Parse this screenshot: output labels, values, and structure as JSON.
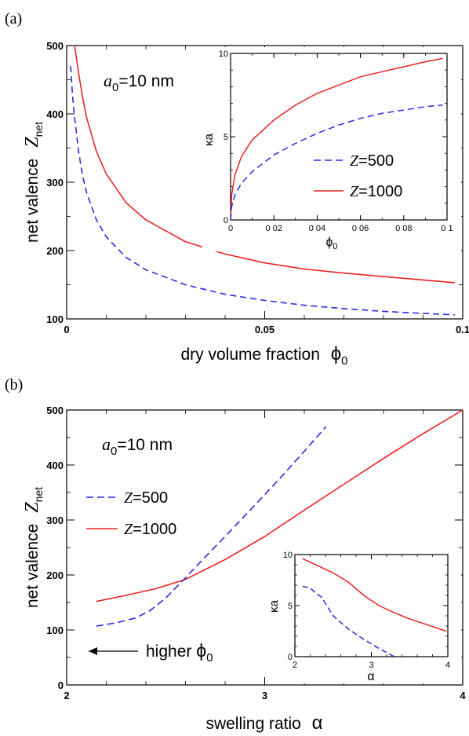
{
  "chart_data": [
    {
      "type": "line",
      "panel_label": "(a)",
      "xlabel": "dry volume fraction",
      "xlabel_symbol": "ϕ",
      "xlabel_sub": "0",
      "ylabel": "net valence",
      "ylabel_symbol": "Z",
      "ylabel_sub": "net",
      "xlim": [
        0,
        0.1
      ],
      "ylim": [
        100,
        500
      ],
      "xticks": [
        "0",
        "0.05",
        "0.1"
      ],
      "yticks": [
        "100",
        "200",
        "300",
        "400",
        "500"
      ],
      "annotation": {
        "a": "a",
        "sub": "0",
        "text": "=10 nm"
      },
      "series": [
        {
          "name": "Z=1000",
          "color": "#ee2222",
          "dash": "solid",
          "x": [
            0.002,
            0.003,
            0.004,
            0.005,
            0.0075,
            0.01,
            0.015,
            0.02,
            0.03,
            0.04,
            0.05,
            0.06,
            0.07,
            0.08,
            0.09,
            0.098
          ],
          "y": [
            500,
            460,
            425,
            395,
            345,
            312,
            270,
            245,
            213,
            195,
            182,
            173,
            167,
            162,
            157,
            153
          ]
        },
        {
          "name": "Z=500",
          "color": "#2a2ae6",
          "dash": "dashed",
          "x": [
            0.001,
            0.0015,
            0.002,
            0.003,
            0.004,
            0.005,
            0.0075,
            0.01,
            0.015,
            0.02,
            0.03,
            0.04,
            0.05,
            0.06,
            0.07,
            0.08,
            0.09,
            0.098
          ],
          "y": [
            470,
            425,
            395,
            345,
            310,
            285,
            245,
            220,
            190,
            172,
            150,
            136,
            127,
            120,
            115,
            111,
            108,
            106
          ]
        }
      ],
      "inset": {
        "xlabel_symbol": "ϕ",
        "xlabel_sub": "0",
        "ylabel": "κa",
        "xlim": [
          0,
          0.1
        ],
        "ylim": [
          0,
          10
        ],
        "xticks": [
          "0",
          "0 02",
          "0 04",
          "0 06",
          "0 08",
          "0 1"
        ],
        "yticks": [
          "0",
          "5",
          "10"
        ],
        "series": [
          {
            "name": "Z=1000",
            "color": "#ee2222",
            "dash": "solid",
            "x": [
              0,
              0.0005,
              0.002,
              0.005,
              0.01,
              0.02,
              0.03,
              0.04,
              0.05,
              0.06,
              0.07,
              0.08,
              0.09,
              0.098
            ],
            "y": [
              0,
              1.5,
              2.7,
              3.8,
              4.8,
              6.0,
              6.9,
              7.6,
              8.1,
              8.6,
              8.9,
              9.2,
              9.5,
              9.7
            ]
          },
          {
            "name": "Z=500",
            "color": "#2a2ae6",
            "dash": "dashed",
            "x": [
              0,
              0.0005,
              0.002,
              0.005,
              0.01,
              0.02,
              0.03,
              0.04,
              0.05,
              0.06,
              0.07,
              0.08,
              0.09,
              0.098
            ],
            "y": [
              0,
              0.8,
              1.5,
              2.2,
              2.9,
              3.9,
              4.6,
              5.2,
              5.7,
              6.1,
              6.4,
              6.6,
              6.8,
              6.9
            ]
          }
        ],
        "legend": [
          {
            "label_z": "Z",
            "label_rest": "=500",
            "color": "#2a2ae6",
            "dash": "dashed"
          },
          {
            "label_z": "Z",
            "label_rest": "=1000",
            "color": "#ee2222",
            "dash": "solid"
          }
        ]
      }
    },
    {
      "type": "line",
      "panel_label": "(b)",
      "xlabel": "swelling ratio",
      "xlabel_symbol": "α",
      "ylabel": "net valence",
      "ylabel_symbol": "Z",
      "ylabel_sub": "net",
      "xlim": [
        2,
        4
      ],
      "ylim": [
        0,
        500
      ],
      "xticks": [
        "2",
        "3",
        "4"
      ],
      "yticks": [
        "0",
        "100",
        "200",
        "300",
        "400",
        "500"
      ],
      "annotation": {
        "a": "a",
        "sub": "0",
        "text": "=10 nm"
      },
      "arrow_text": "higher",
      "arrow_symbol": "ϕ",
      "arrow_sub": "0",
      "series": [
        {
          "name": "Z=1000",
          "color": "#ee2222",
          "dash": "solid",
          "x": [
            2.15,
            2.3,
            2.45,
            2.6,
            2.8,
            3.0,
            3.2,
            3.4,
            3.6,
            3.8,
            4.0
          ],
          "y": [
            152,
            163,
            175,
            192,
            228,
            270,
            318,
            365,
            412,
            457,
            500
          ]
        },
        {
          "name": "Z=500",
          "color": "#2a2ae6",
          "dash": "dashed",
          "x": [
            2.15,
            2.25,
            2.35,
            2.42,
            2.5,
            2.6,
            2.7,
            2.8,
            2.9,
            3.0,
            3.1,
            3.2,
            3.31
          ],
          "y": [
            107,
            113,
            122,
            135,
            158,
            195,
            233,
            270,
            308,
            346,
            385,
            425,
            470
          ]
        }
      ],
      "legend": [
        {
          "label_z": "Z",
          "label_rest": "=500",
          "color": "#2a2ae6",
          "dash": "dashed"
        },
        {
          "label_z": "Z",
          "label_rest": "=1000",
          "color": "#ee2222",
          "dash": "solid"
        }
      ],
      "inset": {
        "xlabel_symbol": "α",
        "ylabel": "κa",
        "xlim": [
          2,
          4
        ],
        "ylim": [
          0,
          10
        ],
        "xticks": [
          "2",
          "3",
          "4"
        ],
        "yticks": [
          "0",
          "5",
          "10"
        ],
        "series": [
          {
            "name": "Z=1000",
            "color": "#ee2222",
            "dash": "solid",
            "x": [
              2.1,
              2.3,
              2.5,
              2.7,
              2.9,
              3.1,
              3.3,
              3.5,
              3.7,
              3.9,
              3.98
            ],
            "y": [
              9.6,
              8.9,
              8.2,
              7.3,
              6.0,
              5.0,
              4.3,
              3.7,
              3.2,
              2.7,
              2.5
            ]
          },
          {
            "name": "Z=500",
            "color": "#2a2ae6",
            "dash": "dashed",
            "x": [
              2.1,
              2.2,
              2.35,
              2.5,
              2.7,
              2.9,
              3.1,
              3.3
            ],
            "y": [
              6.9,
              6.7,
              5.8,
              4.0,
              2.7,
              1.7,
              0.8,
              0.0
            ]
          }
        ]
      }
    }
  ]
}
